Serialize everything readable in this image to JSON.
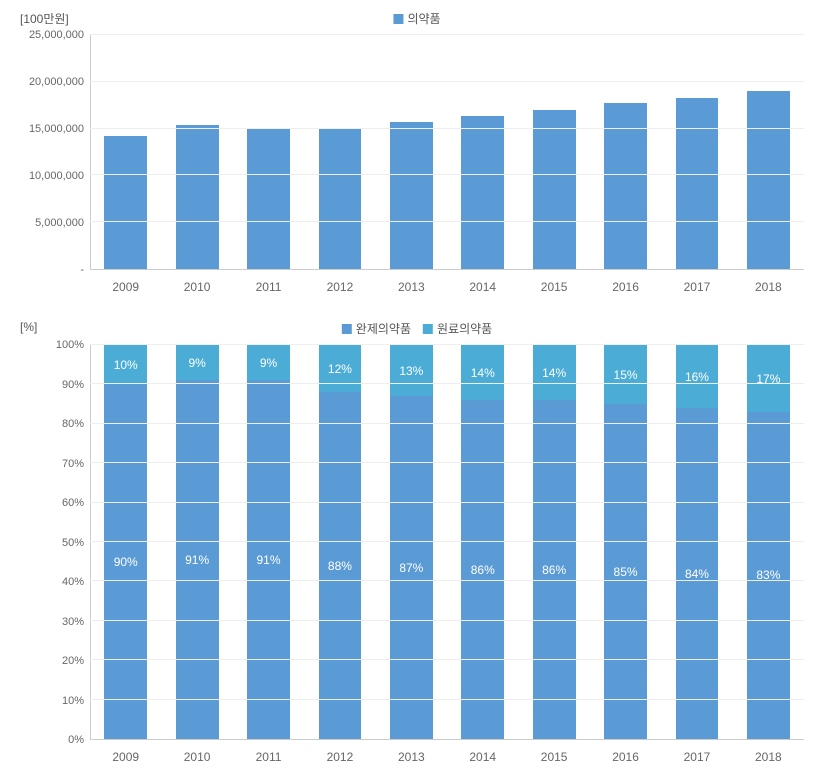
{
  "chart1": {
    "type": "bar",
    "unit_label": "[100만원]",
    "legend": [
      {
        "label": "의약품",
        "color": "#5b9bd5"
      }
    ],
    "categories": [
      "2009",
      "2010",
      "2011",
      "2012",
      "2013",
      "2014",
      "2015",
      "2016",
      "2017",
      "2018"
    ],
    "values": [
      14200000,
      15400000,
      15100000,
      15000000,
      15700000,
      16400000,
      17000000,
      17700000,
      18300000,
      19000000
    ],
    "bar_color": "#5b9bd5",
    "ylim_max": 25000000,
    "yticks": [
      {
        "v": 0,
        "label": "-"
      },
      {
        "v": 5000000,
        "label": "5,000,000"
      },
      {
        "v": 10000000,
        "label": "10,000,000"
      },
      {
        "v": 15000000,
        "label": "15,000,000"
      },
      {
        "v": 20000000,
        "label": "20,000,000"
      },
      {
        "v": 25000000,
        "label": "25,000,000"
      }
    ],
    "background_color": "#ffffff",
    "grid_color": "#eeeeee",
    "axis_color": "#cccccc",
    "label_fontsize": 12,
    "tick_fontsize": 11
  },
  "chart2": {
    "type": "stacked-bar-100",
    "unit_label": "[%]",
    "legend": [
      {
        "label": "완제의약품",
        "color": "#5b9bd5"
      },
      {
        "label": "원료의약품",
        "color": "#4bacd6"
      }
    ],
    "categories": [
      "2009",
      "2010",
      "2011",
      "2012",
      "2013",
      "2014",
      "2015",
      "2016",
      "2017",
      "2018"
    ],
    "series": [
      {
        "name": "완제의약품",
        "color": "#5b9bd5",
        "values": [
          90,
          91,
          91,
          88,
          87,
          86,
          86,
          85,
          84,
          83
        ]
      },
      {
        "name": "원료의약품",
        "color": "#4bacd6",
        "values": [
          10,
          9,
          9,
          12,
          13,
          14,
          14,
          15,
          16,
          17
        ]
      }
    ],
    "ylim_max": 100,
    "yticks": [
      {
        "v": 0,
        "label": "0%"
      },
      {
        "v": 10,
        "label": "10%"
      },
      {
        "v": 20,
        "label": "20%"
      },
      {
        "v": 30,
        "label": "30%"
      },
      {
        "v": 40,
        "label": "40%"
      },
      {
        "v": 50,
        "label": "50%"
      },
      {
        "v": 60,
        "label": "60%"
      },
      {
        "v": 70,
        "label": "70%"
      },
      {
        "v": 80,
        "label": "80%"
      },
      {
        "v": 90,
        "label": "90%"
      },
      {
        "v": 100,
        "label": "100%"
      }
    ],
    "background_color": "#ffffff",
    "grid_color": "#eeeeee",
    "axis_color": "#cccccc",
    "label_fontsize": 12,
    "tick_fontsize": 11,
    "data_label_color": "#ffffff"
  }
}
